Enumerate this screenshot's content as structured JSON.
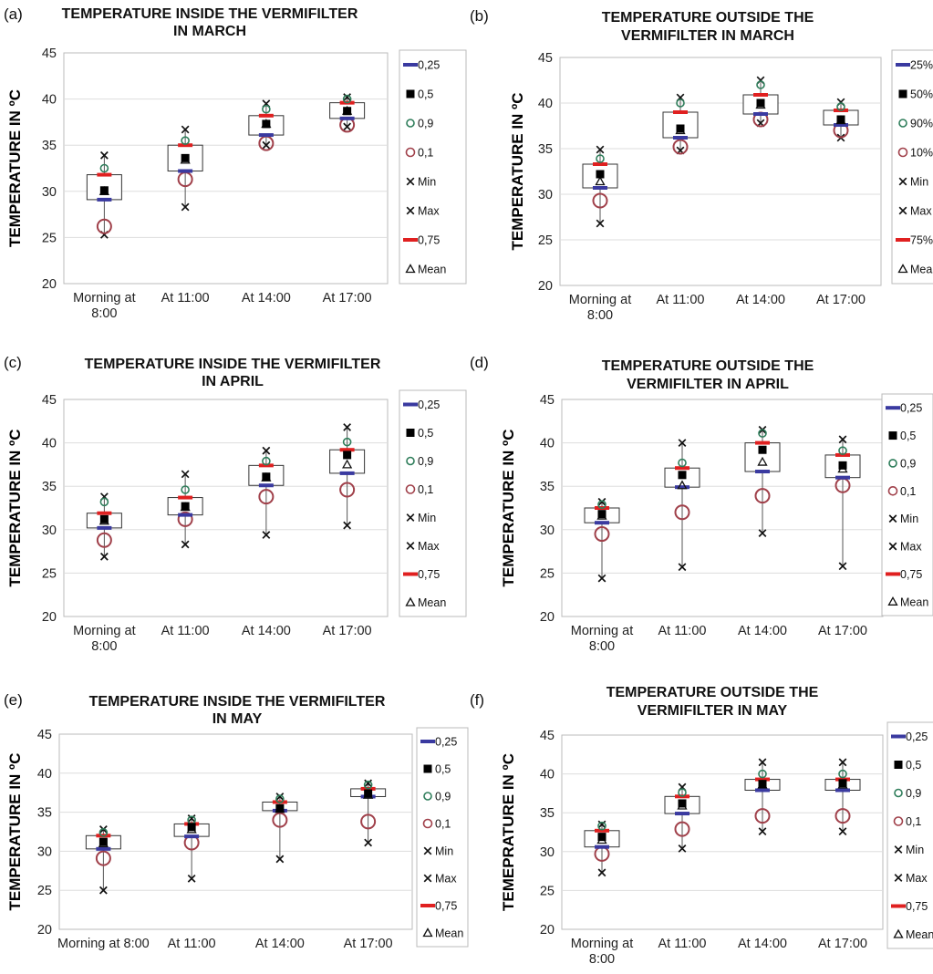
{
  "colors": {
    "q25": "#3a3aa0",
    "q75": "#e02020",
    "median": "#000000",
    "p90": "#2e7d5a",
    "p10": "#a0404a",
    "minmax": "#111111",
    "mean": "#111111",
    "box": "#333333",
    "grid": "#dddddd"
  },
  "chart_data": [
    {
      "type": "box",
      "panel_label": "(a)",
      "title_lines": [
        "TEMPERATURE INSIDE THE VERMIFILTER",
        "IN MARCH"
      ],
      "ylabel": "TEMPERATURE IN ºC",
      "ylim": [
        20,
        45
      ],
      "yticks": [
        "20",
        "25",
        "30",
        "35",
        "40",
        "45"
      ],
      "categories": [
        [
          "Morning at",
          "8:00"
        ],
        [
          "At 11:00"
        ],
        [
          "At 14:00"
        ],
        [
          "At 17:00"
        ]
      ],
      "legend": [
        "0,25",
        "0,5",
        "0,9",
        "0,1",
        "Min",
        "Max",
        "0,75",
        "Mean"
      ],
      "stats": [
        {
          "q25": 29.1,
          "median": 30.1,
          "q75": 31.8,
          "p90": 32.5,
          "p10": 26.2,
          "min": 25.3,
          "max": 33.9,
          "mean": 30.0
        },
        {
          "q25": 32.2,
          "median": 33.6,
          "q75": 35.0,
          "p90": 35.5,
          "p10": 31.3,
          "min": 28.3,
          "max": 36.7,
          "mean": 33.4
        },
        {
          "q25": 36.1,
          "median": 37.3,
          "q75": 38.2,
          "p90": 38.9,
          "p10": 35.2,
          "min": 35.0,
          "max": 39.5,
          "mean": 37.3
        },
        {
          "q25": 37.9,
          "median": 38.7,
          "q75": 39.6,
          "p90": 40.0,
          "p10": 37.2,
          "min": 37.0,
          "max": 40.2,
          "mean": 38.7
        }
      ]
    },
    {
      "type": "box",
      "panel_label": "(b)",
      "title_lines": [
        "TEMPERATURE OUTSIDE THE",
        "VERMIFILTER IN MARCH"
      ],
      "ylabel": "TEMPERATURE IN ºC",
      "ylim": [
        20,
        45
      ],
      "yticks": [
        "20",
        "25",
        "30",
        "35",
        "40",
        "45"
      ],
      "categories": [
        [
          "Morning at",
          "8:00"
        ],
        [
          "At 11:00"
        ],
        [
          "At 14:00"
        ],
        [
          "At 17:00"
        ]
      ],
      "legend": [
        "25%",
        "50%",
        "90%",
        "10%",
        "Min",
        "Max",
        "75%",
        "Mean"
      ],
      "stats": [
        {
          "q25": 30.7,
          "median": 32.2,
          "q75": 33.3,
          "p90": 33.9,
          "p10": 29.3,
          "min": 26.8,
          "max": 34.9,
          "mean": 31.4
        },
        {
          "q25": 36.2,
          "median": 37.2,
          "q75": 39.0,
          "p90": 40.0,
          "p10": 35.2,
          "min": 34.8,
          "max": 40.6,
          "mean": 37.0
        },
        {
          "q25": 38.8,
          "median": 40.0,
          "q75": 40.9,
          "p90": 42.0,
          "p10": 38.2,
          "min": 37.8,
          "max": 42.5,
          "mean": 39.8
        },
        {
          "q25": 37.6,
          "median": 38.2,
          "q75": 39.2,
          "p90": 39.6,
          "p10": 37.0,
          "min": 36.2,
          "max": 40.1,
          "mean": 38.1
        }
      ]
    },
    {
      "type": "box",
      "panel_label": "(c)",
      "title_lines": [
        "TEMPERATURE INSIDE THE VERMIFILTER",
        "IN APRIL"
      ],
      "ylabel": "TEMPERATURE IN ºC",
      "ylim": [
        20,
        45
      ],
      "yticks": [
        "20",
        "25",
        "30",
        "35",
        "40",
        "45"
      ],
      "categories": [
        [
          "Morning at",
          "8:00"
        ],
        [
          "At 11:00"
        ],
        [
          "At 14:00"
        ],
        [
          "At 17:00"
        ]
      ],
      "legend": [
        "0,25",
        "0,5",
        "0,9",
        "0,1",
        "Min",
        "Max",
        "0,75",
        "Mean"
      ],
      "stats": [
        {
          "q25": 30.2,
          "median": 31.2,
          "q75": 31.9,
          "p90": 33.2,
          "p10": 28.8,
          "min": 26.9,
          "max": 33.8,
          "mean": 31.0
        },
        {
          "q25": 31.7,
          "median": 32.7,
          "q75": 33.7,
          "p90": 34.6,
          "p10": 31.2,
          "min": 28.3,
          "max": 36.4,
          "mean": 32.6
        },
        {
          "q25": 35.1,
          "median": 36.1,
          "q75": 37.4,
          "p90": 37.9,
          "p10": 33.8,
          "min": 29.4,
          "max": 39.1,
          "mean": 36.0
        },
        {
          "q25": 36.5,
          "median": 38.6,
          "q75": 39.2,
          "p90": 40.1,
          "p10": 34.6,
          "min": 30.5,
          "max": 41.8,
          "mean": 37.5
        }
      ]
    },
    {
      "type": "box",
      "panel_label": "(d)",
      "title_lines": [
        "TEMPERATURE OUTSIDE THE",
        "VERMIFILTER IN APRIL"
      ],
      "ylabel": "TEMPERATURE IN ºC",
      "ylim": [
        20,
        45
      ],
      "yticks": [
        "20",
        "25",
        "30",
        "35",
        "40",
        "45"
      ],
      "categories": [
        [
          "Morning at",
          "8:00"
        ],
        [
          "At 11:00"
        ],
        [
          "At 14:00"
        ],
        [
          "At 17:00"
        ]
      ],
      "legend": [
        "0,25",
        "0,5",
        "0,9",
        "0,1",
        "Min",
        "Max",
        "0,75",
        "Mean"
      ],
      "stats": [
        {
          "q25": 30.8,
          "median": 31.8,
          "q75": 32.5,
          "p90": 32.9,
          "p10": 29.5,
          "min": 24.4,
          "max": 33.2,
          "mean": 31.6
        },
        {
          "q25": 34.9,
          "median": 36.3,
          "q75": 37.1,
          "p90": 37.7,
          "p10": 32.0,
          "min": 25.7,
          "max": 40.0,
          "mean": 35.1
        },
        {
          "q25": 36.7,
          "median": 39.2,
          "q75": 40.0,
          "p90": 41.1,
          "p10": 33.9,
          "min": 29.6,
          "max": 41.5,
          "mean": 37.8
        },
        {
          "q25": 36.0,
          "median": 37.4,
          "q75": 38.6,
          "p90": 39.1,
          "p10": 35.1,
          "min": 25.8,
          "max": 40.4,
          "mean": 37.0
        }
      ]
    },
    {
      "type": "box",
      "panel_label": "(e)",
      "title_lines": [
        "TEMPERATURE INSIDE THE VERMIFILTER",
        "IN MAY"
      ],
      "ylabel": "TEMPERATURE IN ºC",
      "ylim": [
        20,
        45
      ],
      "yticks": [
        "20",
        "25",
        "30",
        "35",
        "40",
        "45"
      ],
      "categories": [
        [
          "Morning at 8:00"
        ],
        [
          "At 11:00"
        ],
        [
          "At 14:00"
        ],
        [
          "At 17:00"
        ]
      ],
      "legend": [
        "0,25",
        "0,5",
        "0,9",
        "0,1",
        "Min",
        "Max",
        "0,75",
        "Mean"
      ],
      "stats": [
        {
          "q25": 30.3,
          "median": 31.2,
          "q75": 32.0,
          "p90": 32.4,
          "p10": 29.1,
          "min": 25.0,
          "max": 32.8,
          "mean": 31.0
        },
        {
          "q25": 31.9,
          "median": 33.1,
          "q75": 33.5,
          "p90": 34.0,
          "p10": 31.1,
          "min": 26.5,
          "max": 34.2,
          "mean": 32.8
        },
        {
          "q25": 35.2,
          "median": 35.5,
          "q75": 36.3,
          "p90": 36.7,
          "p10": 34.0,
          "min": 29.0,
          "max": 37.0,
          "mean": 35.4
        },
        {
          "q25": 37.0,
          "median": 37.4,
          "q75": 38.0,
          "p90": 38.5,
          "p10": 33.8,
          "min": 31.1,
          "max": 38.7,
          "mean": 37.2
        }
      ]
    },
    {
      "type": "box",
      "panel_label": "(f)",
      "title_lines": [
        "TEMPERATURE OUTSIDE THE",
        "VERMIFILTER IN MAY"
      ],
      "ylabel": "TEMEPRATURE IN ºC",
      "ylim": [
        20,
        45
      ],
      "yticks": [
        "20",
        "25",
        "30",
        "35",
        "40",
        "45"
      ],
      "categories": [
        [
          "Morning at",
          "8:00"
        ],
        [
          "At 11:00"
        ],
        [
          "At 14:00"
        ],
        [
          "At 17:00"
        ]
      ],
      "legend": [
        "0,25",
        "0,5",
        "0,9",
        "0,1",
        "Min",
        "Max",
        "0,75",
        "Mean"
      ],
      "stats": [
        {
          "q25": 30.6,
          "median": 31.9,
          "q75": 32.7,
          "p90": 33.3,
          "p10": 29.7,
          "min": 27.3,
          "max": 33.5,
          "mean": 31.5
        },
        {
          "q25": 34.9,
          "median": 36.2,
          "q75": 37.1,
          "p90": 37.6,
          "p10": 32.9,
          "min": 30.4,
          "max": 38.3,
          "mean": 35.9
        },
        {
          "q25": 37.9,
          "median": 38.7,
          "q75": 39.3,
          "p90": 40.0,
          "p10": 34.6,
          "min": 32.6,
          "max": 41.5,
          "mean": 38.6
        },
        {
          "q25": 37.9,
          "median": 38.8,
          "q75": 39.3,
          "p90": 40.0,
          "p10": 34.6,
          "min": 32.6,
          "max": 41.5,
          "mean": 38.6
        }
      ]
    }
  ]
}
